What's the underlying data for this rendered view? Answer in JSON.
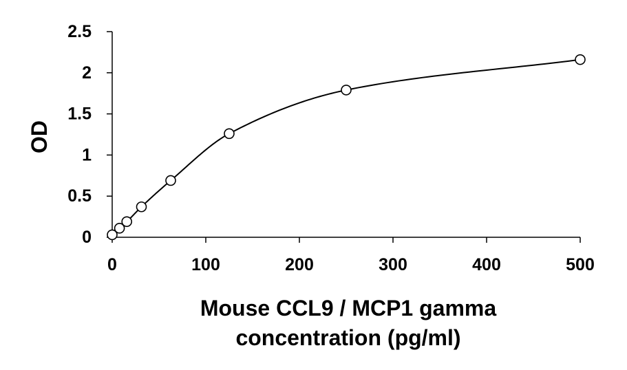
{
  "chart_data": {
    "type": "scatter",
    "title": "",
    "xlabel_lines": [
      "Mouse CCL9 / MCP1 gamma",
      "concentration (pg/ml)"
    ],
    "ylabel": "OD",
    "xlim": [
      0,
      500
    ],
    "ylim": [
      0,
      2.5
    ],
    "x_ticks": [
      0,
      100,
      200,
      300,
      400,
      500
    ],
    "x_tick_labels": [
      "0",
      "100",
      "200",
      "300",
      "400",
      "500"
    ],
    "y_ticks": [
      0,
      0.5,
      1,
      1.5,
      2,
      2.5
    ],
    "y_tick_labels": [
      "0",
      "0.5",
      "1",
      "1.5",
      "2",
      "2.5"
    ],
    "grid": false,
    "legend": "none",
    "series": [
      {
        "marker": "open-circle",
        "line": "smooth-fit",
        "color": "#000000",
        "x": [
          0,
          7.8,
          15.6,
          31.25,
          62.5,
          125,
          250,
          500
        ],
        "y": [
          0.03,
          0.11,
          0.19,
          0.37,
          0.69,
          1.26,
          1.79,
          2.16
        ]
      }
    ]
  }
}
